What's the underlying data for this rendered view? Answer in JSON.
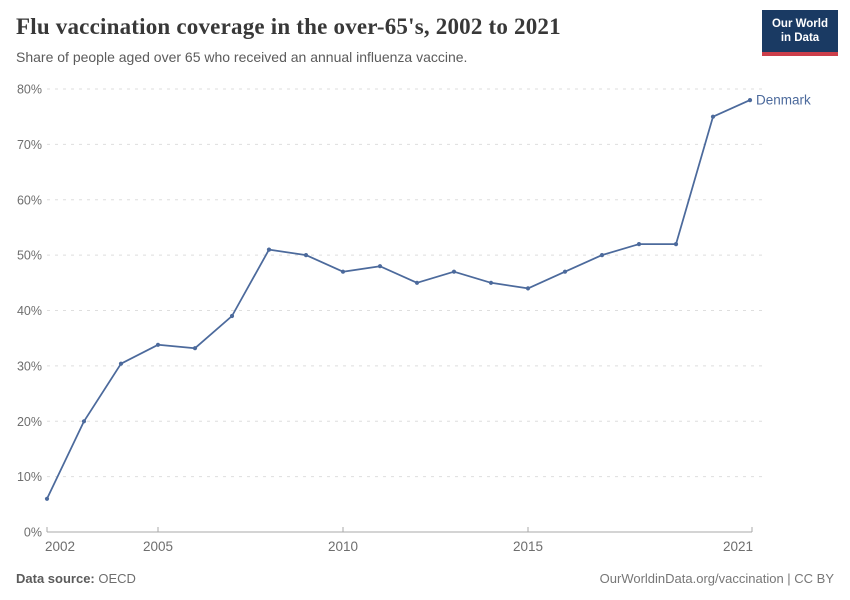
{
  "header": {
    "title": "Flu vaccination coverage in the over-65's, 2002 to 2021",
    "subtitle": "Share of people aged over 65 who received an annual influenza vaccine.",
    "logo": {
      "line1": "Our World",
      "line2": "in Data",
      "bg": "#1a3a63",
      "accent": "#cc3e4a"
    }
  },
  "chart_data": {
    "type": "line",
    "title": "Flu vaccination coverage in the over-65's, 2002 to 2021",
    "subtitle": "Share of people aged over 65 who received an annual influenza vaccine.",
    "x": [
      2002,
      2003,
      2004,
      2005,
      2006,
      2007,
      2008,
      2009,
      2010,
      2011,
      2012,
      2013,
      2014,
      2015,
      2016,
      2017,
      2018,
      2019,
      2020,
      2021
    ],
    "series": [
      {
        "name": "Denmark",
        "color": "#4c6a9c",
        "values": [
          6,
          20,
          30.4,
          33.8,
          33.2,
          39,
          51,
          50,
          47,
          48,
          45,
          47,
          45,
          44,
          47,
          50,
          52,
          52,
          75,
          78
        ]
      }
    ],
    "xlabel": "",
    "ylabel": "",
    "ylim": [
      0,
      80
    ],
    "ytick_values": [
      0,
      10,
      20,
      30,
      40,
      50,
      60,
      70,
      80
    ],
    "ytick_labels": [
      "0%",
      "10%",
      "20%",
      "30%",
      "40%",
      "50%",
      "60%",
      "70%",
      "80%"
    ],
    "xticks": [
      2002,
      2005,
      2010,
      2015,
      2021
    ],
    "grid": "horizontal dashed",
    "legend": "line-end label"
  },
  "footer": {
    "source_label": "Data source:",
    "source_value": "OECD",
    "credit": "OurWorldinData.org/vaccination | CC BY"
  }
}
